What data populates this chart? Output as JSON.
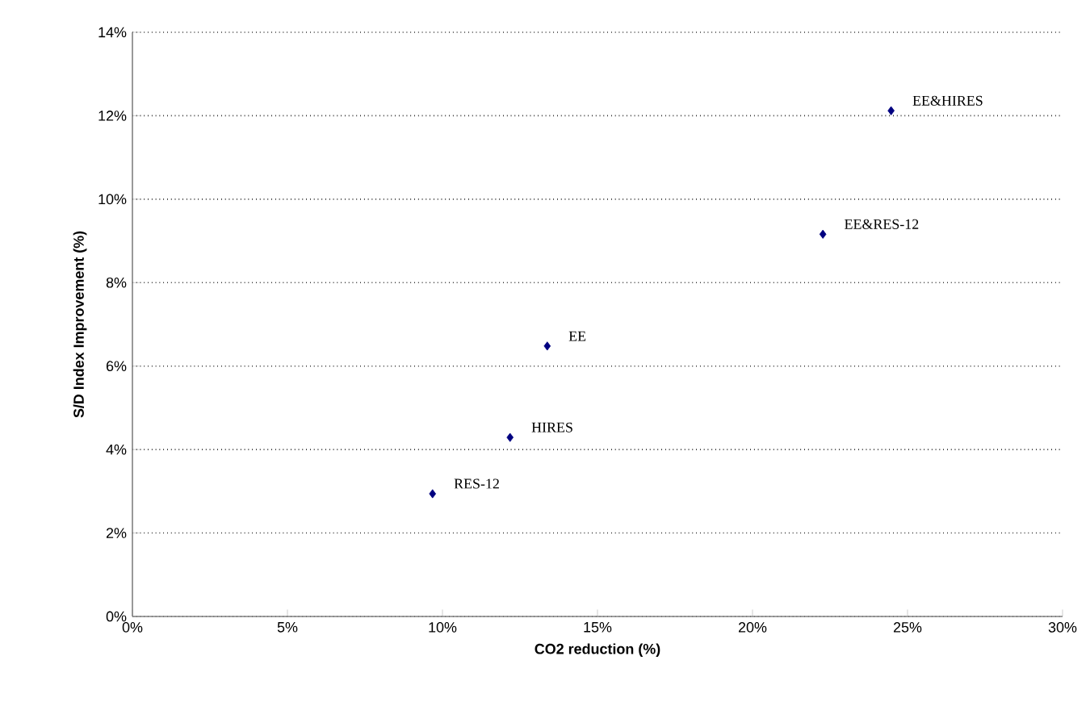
{
  "chart_data": {
    "type": "scatter",
    "xlabel": "CO2 reduction (%)",
    "ylabel": "S/D Index Improvement (%)",
    "x": [
      24.47,
      22.27,
      13.38,
      12.18,
      9.68
    ],
    "values": [
      12.12,
      9.16,
      6.48,
      4.29,
      2.94
    ],
    "color": "#000080",
    "marker": "diamond",
    "grid": "y",
    "xlim": [
      0,
      30
    ],
    "ylim": [
      0,
      14
    ],
    "xticks": [
      {
        "value": 0,
        "label": "0%"
      },
      {
        "value": 5,
        "label": "5%"
      },
      {
        "value": 10,
        "label": "10%"
      },
      {
        "value": 15,
        "label": "15%"
      },
      {
        "value": 20,
        "label": "20%"
      },
      {
        "value": 25,
        "label": "25%"
      },
      {
        "value": 30,
        "label": "30%"
      }
    ],
    "yticks": [
      {
        "value": 0,
        "label": "0%"
      },
      {
        "value": 2,
        "label": "2%"
      },
      {
        "value": 4,
        "label": "4%"
      },
      {
        "value": 6,
        "label": "6%"
      },
      {
        "value": 8,
        "label": "8%"
      },
      {
        "value": 10,
        "label": "10%"
      },
      {
        "value": 12,
        "label": "12%"
      },
      {
        "value": 14,
        "label": "14%"
      }
    ],
    "annotations": [
      {
        "text": "EE&HIRES",
        "x": 24.47,
        "y": 12.12
      },
      {
        "text": "EE&RES-12",
        "x": 22.27,
        "y": 9.16
      },
      {
        "text": "EE",
        "x": 13.38,
        "y": 6.48
      },
      {
        "text": "HIRES",
        "x": 12.18,
        "y": 4.29
      },
      {
        "text": "RES-12",
        "x": 9.68,
        "y": 2.94
      }
    ]
  }
}
